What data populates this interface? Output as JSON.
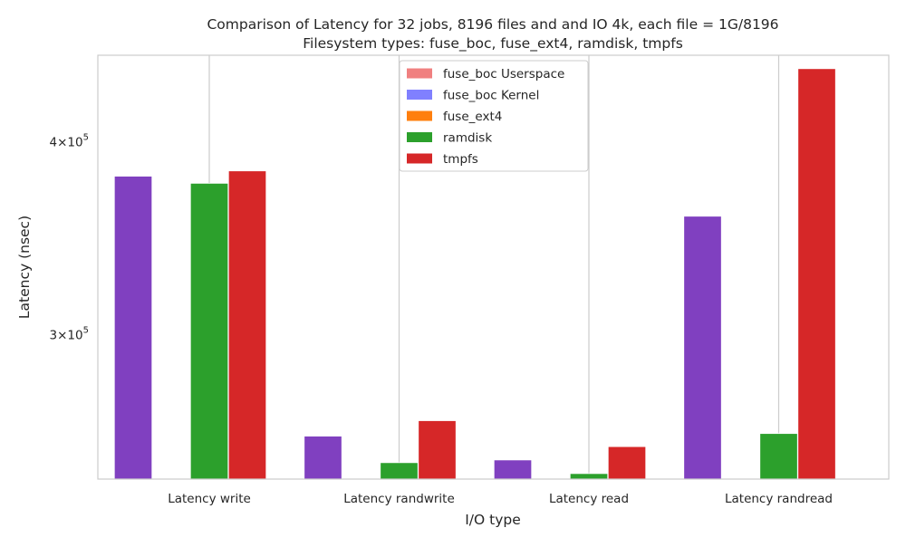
{
  "chart_data": {
    "type": "bar",
    "title": "Comparison of Latency for 32 jobs, 8196 files and  and IO 4k, each file = 1G/8196",
    "subtitle": "Filesystem types: fuse_boc, fuse_ext4, ramdisk, tmpfs",
    "xlabel": "I/O type",
    "ylabel": "Latency (nsec)",
    "yscale": "log",
    "ylim": [
      242000,
      455000
    ],
    "yticks": [
      {
        "value": 300000,
        "mant": "3",
        "exp": "5"
      },
      {
        "value": 400000,
        "mant": "4",
        "exp": "5"
      }
    ],
    "grid": "vertical at category centers",
    "legend_position": "top-center",
    "categories": [
      "Latency write",
      "Latency randwrite",
      "Latency read",
      "Latency randread"
    ],
    "series": [
      {
        "name": "fuse_boc Userspace",
        "color": "#f08080",
        "opacity": 1.0,
        "values": [
          380000,
          258000,
          249000,
          358000
        ]
      },
      {
        "name": "fuse_boc Kernel",
        "color": "#8080ff",
        "opacity": 1.0,
        "values": [
          380000,
          258000,
          249000,
          358000
        ]
      },
      {
        "name": "fuse_ext4",
        "color": "#ff7f0e",
        "opacity": 1.0,
        "values": [
          null,
          null,
          null,
          null
        ]
      },
      {
        "name": "ramdisk",
        "color": "#2ca02c",
        "opacity": 1.0,
        "values": [
          376000,
          248000,
          244000,
          259000
        ]
      },
      {
        "name": "tmpfs",
        "color": "#d62728",
        "opacity": 1.0,
        "values": [
          383000,
          264000,
          254000,
          446000
        ]
      }
    ],
    "overlap_color": "#8040c0"
  }
}
